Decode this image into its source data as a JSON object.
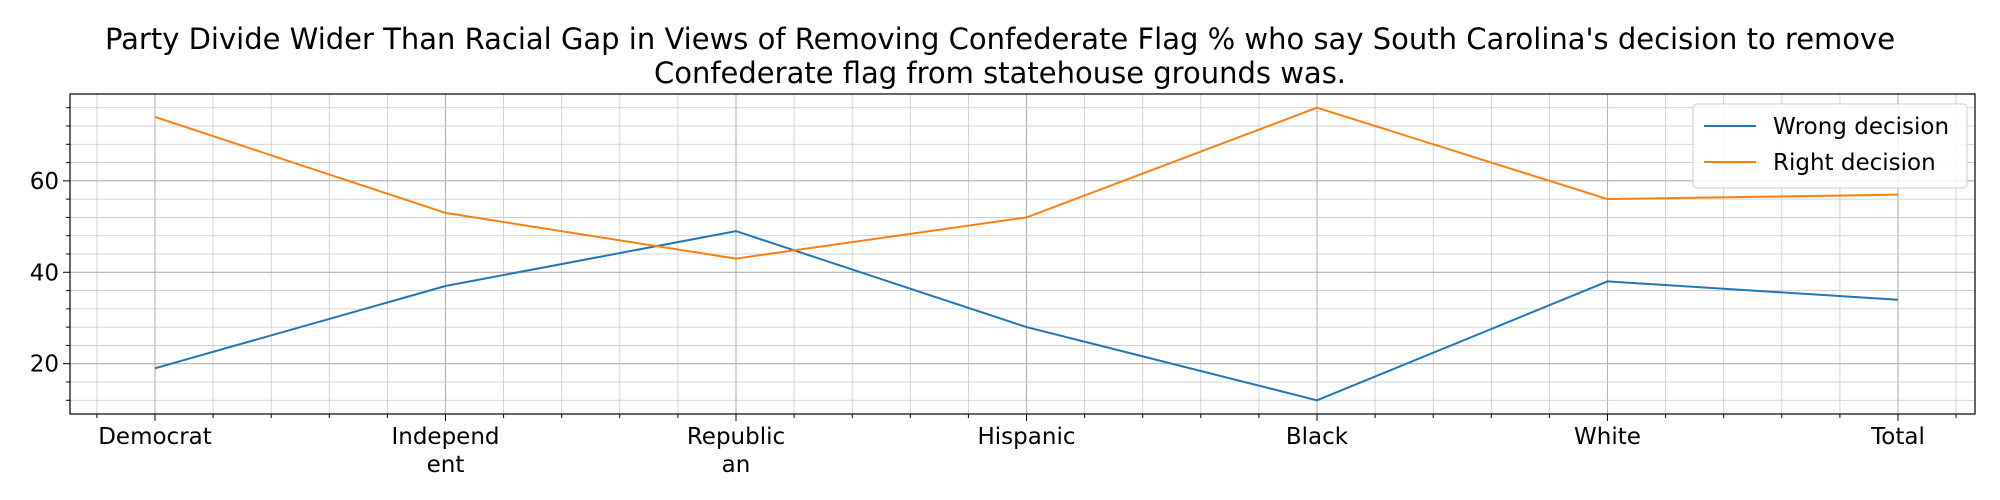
{
  "chart_data": {
    "type": "line",
    "title": "Party Divide Wider Than Racial Gap in Views of Removing Confederate Flag % who say South Carolina's decision to remove Confederate flag from statehouse grounds was.",
    "title_lines": [
      "Party Divide Wider Than Racial Gap in Views of Removing Confederate Flag % who say South Carolina's decision to remove",
      "Confederate flag from statehouse grounds was."
    ],
    "xlabel": "",
    "ylabel": "",
    "categories": [
      "Democrat",
      "Independent",
      "Republican",
      "Hispanic",
      "Black",
      "White",
      "Total"
    ],
    "category_tick_lines": [
      [
        "Democrat"
      ],
      [
        "Independ",
        "ent"
      ],
      [
        "Republic",
        "an"
      ],
      [
        "Hispanic"
      ],
      [
        "Black"
      ],
      [
        "White"
      ],
      [
        "Total"
      ]
    ],
    "y_ticks": [
      20,
      40,
      60
    ],
    "ylim": [
      9,
      79
    ],
    "grid": true,
    "legend_position": "top-right",
    "series": [
      {
        "name": "Wrong decision",
        "color": "#1f77b4",
        "values": [
          19,
          37,
          49,
          28,
          12,
          38,
          34
        ]
      },
      {
        "name": "Right decision",
        "color": "#ff7f0e",
        "values": [
          74,
          53,
          43,
          52,
          76,
          56,
          57
        ]
      }
    ]
  }
}
